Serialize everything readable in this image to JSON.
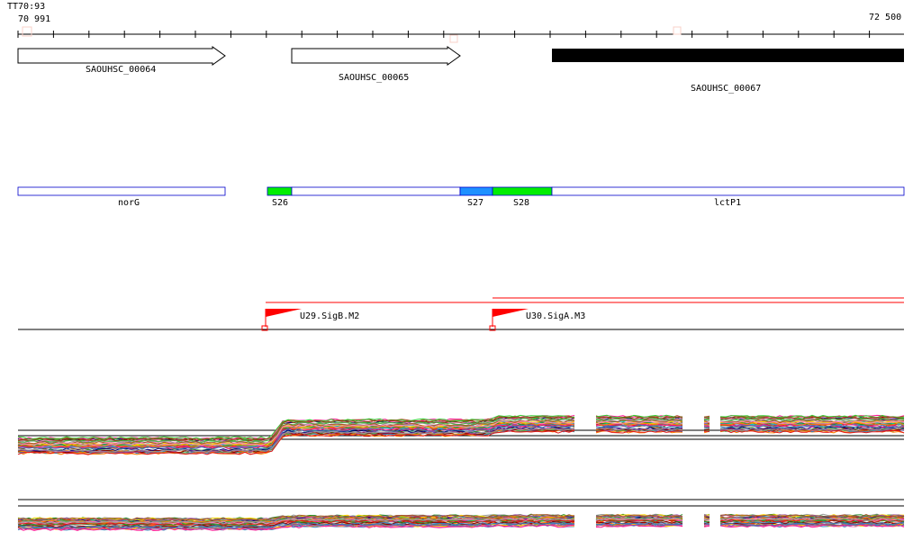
{
  "axis": {
    "start_label": "70 991",
    "end_label": "72 500",
    "overlay_label": "TT70:93"
  },
  "genes": [
    {
      "name": "SAOUHSC_00064",
      "type": "arrow"
    },
    {
      "name": "SAOUHSC_00065",
      "type": "arrow"
    },
    {
      "name": "SAOUHSC_00067",
      "type": "filled"
    }
  ],
  "segments": [
    {
      "name": "norG",
      "color": "#ffffff"
    },
    {
      "name": "S26",
      "color": "#00ee00"
    },
    {
      "name": "",
      "color": "#ffffff"
    },
    {
      "name": "S27",
      "color": "#1e90ff"
    },
    {
      "name": "S28",
      "color": "#00ee00"
    },
    {
      "name": "lctP1",
      "color": "#ffffff"
    }
  ],
  "promoters": [
    {
      "name": "U29.SigB.M2"
    },
    {
      "name": "U30.SigA.M3"
    }
  ],
  "colors": {
    "promoter": "#ff0000",
    "segment_border": "#0000cc"
  }
}
